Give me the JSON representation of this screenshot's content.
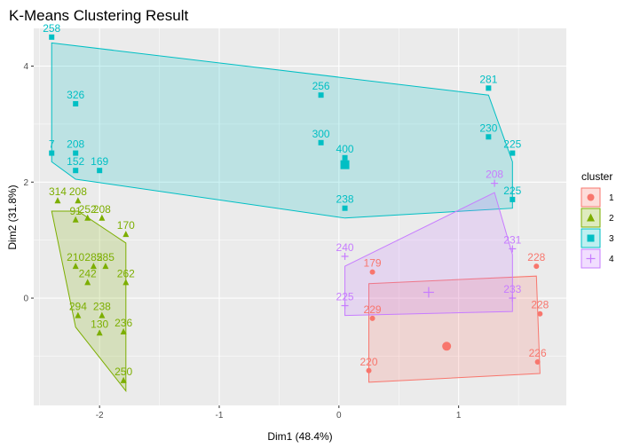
{
  "chart_data": {
    "type": "scatter",
    "title": "K-Means Clustering Result",
    "xlabel": "Dim1 (48.4%)",
    "ylabel": "Dim2 (31.8%)",
    "xlim": [
      -2.55,
      1.9
    ],
    "ylim": [
      -1.85,
      4.65
    ],
    "xticks": [
      -2,
      -1,
      0,
      1
    ],
    "yticks": [
      0,
      2,
      4
    ],
    "grid": true,
    "legend": {
      "title": "cluster",
      "placement": "right",
      "entries": [
        "1",
        "2",
        "3",
        "4"
      ]
    },
    "colors": {
      "1": "#F8766D",
      "2": "#7CAE00",
      "3": "#00BFC4",
      "4": "#C77CFF"
    },
    "shapes": {
      "1": "circle",
      "2": "triangle",
      "3": "square",
      "4": "plus"
    },
    "series": [
      {
        "name": "1",
        "hull": [
          [
            0.25,
            -1.45
          ],
          [
            1.68,
            -1.3
          ],
          [
            1.65,
            0.38
          ],
          [
            0.25,
            0.25
          ]
        ],
        "centroid": [
          0.9,
          -0.83
        ],
        "points": [
          {
            "x": 0.28,
            "y": 0.45,
            "label": "179"
          },
          {
            "x": 0.28,
            "y": -0.35,
            "label": "229"
          },
          {
            "x": 0.25,
            "y": -1.25,
            "label": "220"
          },
          {
            "x": 1.65,
            "y": 0.55,
            "label": "228"
          },
          {
            "x": 1.68,
            "y": -0.27,
            "label": "228"
          },
          {
            "x": 1.66,
            "y": -1.1,
            "label": "226"
          }
        ]
      },
      {
        "name": "2",
        "hull": [
          [
            -2.4,
            1.5
          ],
          [
            -2.18,
            1.5
          ],
          [
            -1.78,
            0.95
          ],
          [
            -1.78,
            -1.6
          ],
          [
            -2.2,
            -0.5
          ]
        ],
        "centroid": null,
        "points": [
          {
            "x": -2.35,
            "y": 1.68,
            "label": "314"
          },
          {
            "x": -2.18,
            "y": 1.68,
            "label": "208"
          },
          {
            "x": -2.2,
            "y": 1.35,
            "label": "91"
          },
          {
            "x": -2.1,
            "y": 1.38,
            "label": "252"
          },
          {
            "x": -1.98,
            "y": 1.38,
            "label": "208"
          },
          {
            "x": -1.78,
            "y": 1.1,
            "label": "170"
          },
          {
            "x": -2.2,
            "y": 0.55,
            "label": "210"
          },
          {
            "x": -2.05,
            "y": 0.55,
            "label": "285"
          },
          {
            "x": -1.95,
            "y": 0.55,
            "label": "285"
          },
          {
            "x": -1.78,
            "y": 0.27,
            "label": "262"
          },
          {
            "x": -2.1,
            "y": 0.27,
            "label": "242"
          },
          {
            "x": -2.18,
            "y": -0.3,
            "label": "294"
          },
          {
            "x": -1.98,
            "y": -0.3,
            "label": "238"
          },
          {
            "x": -1.8,
            "y": -0.58,
            "label": "236"
          },
          {
            "x": -2.0,
            "y": -0.6,
            "label": "130"
          },
          {
            "x": -1.8,
            "y": -1.42,
            "label": "250"
          }
        ]
      },
      {
        "name": "3",
        "hull": [
          [
            -2.4,
            4.4
          ],
          [
            1.25,
            3.5
          ],
          [
            1.45,
            2.35
          ],
          [
            1.45,
            1.55
          ],
          [
            0.05,
            1.38
          ],
          [
            -2.2,
            2.05
          ],
          [
            -2.4,
            2.35
          ]
        ],
        "centroid": [
          0.05,
          2.3
        ],
        "points": [
          {
            "x": -2.4,
            "y": 4.5,
            "label": "258"
          },
          {
            "x": 1.25,
            "y": 3.62,
            "label": "281"
          },
          {
            "x": -0.15,
            "y": 3.5,
            "label": "256"
          },
          {
            "x": -2.2,
            "y": 3.35,
            "label": "326"
          },
          {
            "x": -0.15,
            "y": 2.68,
            "label": "300"
          },
          {
            "x": 1.25,
            "y": 2.78,
            "label": "230"
          },
          {
            "x": 1.45,
            "y": 2.5,
            "label": "225"
          },
          {
            "x": -2.4,
            "y": 2.5,
            "label": "7"
          },
          {
            "x": -2.2,
            "y": 2.5,
            "label": "208"
          },
          {
            "x": 0.05,
            "y": 2.42,
            "label": "400"
          },
          {
            "x": -2.2,
            "y": 2.2,
            "label": "152"
          },
          {
            "x": -2.0,
            "y": 2.2,
            "label": "169"
          },
          {
            "x": 1.45,
            "y": 1.7,
            "label": "225"
          },
          {
            "x": 0.05,
            "y": 1.55,
            "label": "238"
          }
        ]
      },
      {
        "name": "4",
        "hull": [
          [
            0.05,
            0.55
          ],
          [
            1.3,
            1.82
          ],
          [
            1.45,
            0.75
          ],
          [
            1.45,
            -0.23
          ],
          [
            0.05,
            -0.3
          ]
        ],
        "centroid": [
          0.75,
          0.1
        ],
        "points": [
          {
            "x": 1.3,
            "y": 1.98,
            "label": "208"
          },
          {
            "x": 1.45,
            "y": 0.85,
            "label": "231"
          },
          {
            "x": 0.05,
            "y": 0.72,
            "label": "240"
          },
          {
            "x": 1.45,
            "y": 0.0,
            "label": "233"
          },
          {
            "x": 0.05,
            "y": -0.13,
            "label": "225"
          }
        ]
      }
    ]
  }
}
